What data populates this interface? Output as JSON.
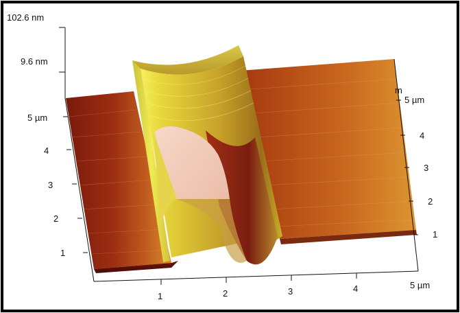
{
  "z_axis": {
    "max_label": "102.6 nm",
    "tick_label": "9.6 nm"
  },
  "y_left_axis": {
    "ticks": [
      "5 µm",
      "4",
      "3",
      "2",
      "1"
    ]
  },
  "y_right_axis": {
    "ticks": [
      "5 µm",
      "4",
      "3",
      "2",
      "1"
    ],
    "fragment": "m"
  },
  "x_axis": {
    "ticks": [
      "1",
      "2",
      "3",
      "4",
      "5 µm"
    ]
  },
  "colors": {
    "frame": "#000000",
    "surface_dark": "#8a1f0e",
    "surface_mid": "#b4471a",
    "surface_light": "#d98a2a",
    "ridge_yellow": "#f0e84a",
    "ridge_olive": "#8a8a1a",
    "cavity_pink": "#f3c9b8"
  }
}
